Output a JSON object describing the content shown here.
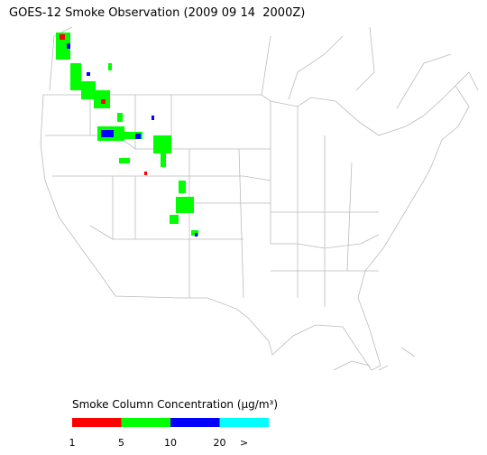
{
  "title": "GOES-12 Smoke Observation (2009 09 14  2000Z)",
  "legend": {
    "title": "Smoke Column Concentration (μg/m³)",
    "colors": [
      "#ff0000",
      "#00ff00",
      "#0000ff",
      "#00ffff"
    ],
    "ticks": [
      1,
      5,
      10,
      20
    ],
    "overflow_label": ">"
  }
}
